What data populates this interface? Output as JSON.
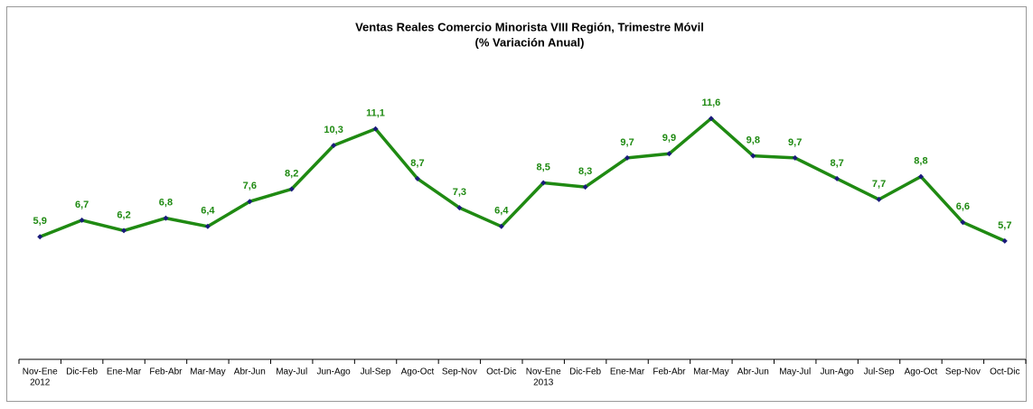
{
  "chart_data": {
    "type": "line",
    "title": "Ventas Reales Comercio Minorista VIII Región, Trimestre Móvil",
    "subtitle": "(% Variación Anual)",
    "categories": [
      "Nov-Ene",
      "Dic-Feb",
      "Ene-Mar",
      "Feb-Abr",
      "Mar-May",
      "Abr-Jun",
      "May-Jul",
      "Jun-Ago",
      "Jul-Sep",
      "Ago-Oct",
      "Sep-Nov",
      "Oct-Dic",
      "Nov-Ene",
      "Dic-Feb",
      "Ene-Mar",
      "Feb-Abr",
      "Mar-May",
      "Abr-Jun",
      "May-Jul",
      "Jun-Ago",
      "Jul-Sep",
      "Ago-Oct",
      "Sep-Nov",
      "Oct-Dic"
    ],
    "year_labels": [
      "2012",
      null,
      null,
      null,
      null,
      null,
      null,
      null,
      null,
      null,
      null,
      null,
      "2013",
      null,
      null,
      null,
      null,
      null,
      null,
      null,
      null,
      null,
      null,
      null
    ],
    "series": [
      {
        "name": "Variación Anual",
        "color": "#1f8a12",
        "marker_color": "#1a1a7a",
        "values": [
          5.9,
          6.7,
          6.2,
          6.8,
          6.4,
          7.6,
          8.2,
          10.3,
          11.1,
          8.7,
          7.3,
          6.4,
          8.5,
          8.3,
          9.7,
          9.9,
          11.6,
          9.8,
          9.7,
          8.7,
          7.7,
          8.8,
          6.6,
          5.7
        ],
        "value_labels": [
          "5,9",
          "6,7",
          "6,2",
          "6,8",
          "6,4",
          "7,6",
          "8,2",
          "10,3",
          "11,1",
          "8,7",
          "7,3",
          "6,4",
          "8,5",
          "8,3",
          "9,7",
          "9,9",
          "11,6",
          "9,8",
          "9,7",
          "8,7",
          "7,7",
          "8,8",
          "6,6",
          "5,7"
        ]
      }
    ],
    "ylim": [
      0,
      14
    ]
  }
}
